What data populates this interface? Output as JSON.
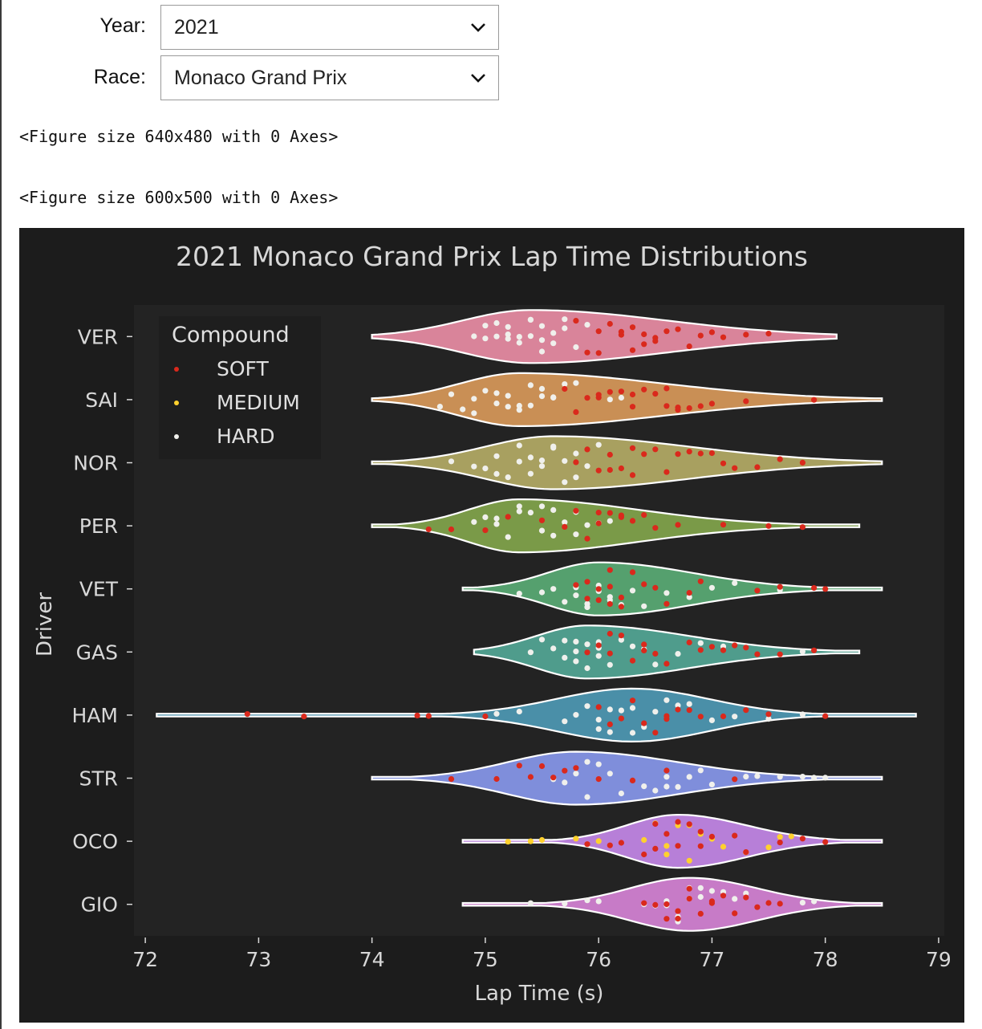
{
  "controls": {
    "year_label": "Year:",
    "year_value": "2021",
    "race_label": "Race:",
    "race_value": "Monaco Grand Prix"
  },
  "outputs": {
    "line1": "<Figure size 640x480 with 0 Axes>",
    "line2": "<Figure size 600x500 with 0 Axes>"
  },
  "chart_data": {
    "type": "violin+swarm",
    "title": "2021 Monaco Grand Prix Lap Time Distributions",
    "xlabel": "Lap Time (s)",
    "ylabel": "Driver",
    "xlim": [
      71.9,
      79.05
    ],
    "xticks": [
      72,
      73,
      74,
      75,
      76,
      77,
      78,
      79
    ],
    "grid": false,
    "legend": {
      "title": "Compound",
      "placement": "top-left",
      "entries": [
        {
          "label": "SOFT",
          "color": "#da291c"
        },
        {
          "label": "MEDIUM",
          "color": "#ffd12e"
        },
        {
          "label": "HARD",
          "color": "#f0f0ec"
        }
      ]
    },
    "drivers": [
      {
        "name": "VER",
        "color": "#d9849a",
        "min": 74.0,
        "max": 78.1,
        "mode": 75.4,
        "spread_lo": 0.8,
        "spread_hi": 1.6,
        "laps": {
          "HARD": [
            74.9,
            75.0,
            75.1,
            75.2,
            75.2,
            75.3,
            75.4,
            75.5,
            75.5,
            75.6,
            75.7,
            75.8,
            75.3,
            75.4,
            75.1,
            75.5,
            75.6,
            75.0,
            75.2,
            75.4,
            75.9,
            75.7
          ],
          "SOFT": [
            75.9,
            76.0,
            76.1,
            76.2,
            76.3,
            76.3,
            76.4,
            76.5,
            76.5,
            76.6,
            76.7,
            76.8,
            76.9,
            77.0,
            77.1,
            77.3,
            77.5,
            76.4,
            76.2,
            76.0,
            75.8
          ]
        }
      },
      {
        "name": "SAI",
        "color": "#c98f55",
        "min": 74.0,
        "max": 78.5,
        "mode": 75.3,
        "spread_lo": 0.7,
        "spread_hi": 1.7,
        "laps": {
          "HARD": [
            74.6,
            74.7,
            74.8,
            74.9,
            75.0,
            75.1,
            75.2,
            75.3,
            75.3,
            75.4,
            75.5,
            75.6,
            75.7,
            75.8,
            75.5,
            75.2,
            75.4,
            74.9,
            75.1,
            75.6,
            76.1,
            76.2
          ],
          "SOFT": [
            75.8,
            75.9,
            76.0,
            76.1,
            76.2,
            76.3,
            76.4,
            76.5,
            76.6,
            76.7,
            76.7,
            76.8,
            76.9,
            77.0,
            77.3,
            77.9,
            76.6,
            76.3,
            76.0,
            75.7
          ]
        }
      },
      {
        "name": "NOR",
        "color": "#a8a060",
        "min": 74.0,
        "max": 78.5,
        "mode": 75.6,
        "spread_lo": 0.8,
        "spread_hi": 1.6,
        "laps": {
          "HARD": [
            74.7,
            74.9,
            75.0,
            75.1,
            75.2,
            75.3,
            75.4,
            75.5,
            75.5,
            75.6,
            75.7,
            75.7,
            75.8,
            75.9,
            75.3,
            75.6,
            75.4,
            75.1,
            75.8,
            76.0
          ],
          "SOFT": [
            75.9,
            76.0,
            76.1,
            76.2,
            76.3,
            76.4,
            76.6,
            76.7,
            76.8,
            76.9,
            77.0,
            77.1,
            77.2,
            77.4,
            77.6,
            77.8,
            76.5,
            76.1,
            75.8,
            76.3
          ]
        }
      },
      {
        "name": "PER",
        "color": "#7a9a48",
        "min": 74.0,
        "max": 78.3,
        "mode": 75.3,
        "spread_lo": 0.6,
        "spread_hi": 1.4,
        "laps": {
          "HARD": [
            74.9,
            75.0,
            75.1,
            75.2,
            75.3,
            75.4,
            75.5,
            75.5,
            75.6,
            75.7,
            75.8,
            75.9,
            76.0,
            75.3,
            75.6,
            75.1,
            75.8,
            76.1
          ],
          "SOFT": [
            74.5,
            74.7,
            75.0,
            75.2,
            75.5,
            75.8,
            75.9,
            76.0,
            76.1,
            76.2,
            76.3,
            76.4,
            76.5,
            76.7,
            77.1,
            77.5,
            77.8,
            75.7,
            76.0,
            76.2
          ]
        }
      },
      {
        "name": "VET",
        "color": "#55a06e",
        "min": 74.8,
        "max": 78.5,
        "mode": 76.0,
        "spread_lo": 0.6,
        "spread_hi": 1.1,
        "laps": {
          "HARD": [
            75.3,
            75.5,
            75.6,
            75.7,
            75.8,
            75.8,
            75.9,
            75.9,
            76.0,
            76.0,
            76.1,
            76.1,
            76.2,
            76.3,
            76.4,
            76.6,
            76.8,
            77.0,
            77.2,
            75.9,
            76.0,
            77.6
          ],
          "SOFT": [
            75.8,
            75.9,
            76.0,
            76.0,
            76.1,
            76.1,
            76.2,
            76.3,
            76.4,
            76.5,
            76.6,
            76.8,
            76.9,
            77.4,
            77.6,
            77.9,
            78.0,
            75.9,
            76.1,
            76.2
          ]
        }
      },
      {
        "name": "GAS",
        "color": "#4f9c8c",
        "min": 74.9,
        "max": 78.3,
        "mode": 75.9,
        "spread_lo": 0.6,
        "spread_hi": 1.2,
        "laps": {
          "HARD": [
            75.4,
            75.5,
            75.6,
            75.7,
            75.7,
            75.8,
            75.8,
            75.9,
            75.9,
            76.0,
            76.0,
            76.1,
            76.2,
            76.3,
            76.4,
            76.5,
            76.7,
            76.9,
            77.1,
            75.8,
            76.0,
            77.8
          ],
          "SOFT": [
            75.9,
            76.0,
            76.1,
            76.2,
            76.3,
            76.4,
            76.5,
            76.6,
            76.8,
            76.9,
            77.0,
            77.1,
            77.2,
            77.3,
            77.4,
            77.6,
            77.9,
            76.1,
            76.4
          ]
        }
      },
      {
        "name": "HAM",
        "color": "#4a8fa8",
        "min": 72.1,
        "max": 78.8,
        "mode": 76.3,
        "spread_lo": 0.9,
        "spread_hi": 0.9,
        "laps": {
          "HARD": [
            75.1,
            75.3,
            75.7,
            75.8,
            75.9,
            76.0,
            76.0,
            76.1,
            76.2,
            76.3,
            76.4,
            76.5,
            76.6,
            76.7,
            76.8,
            77.0,
            77.2,
            77.5,
            77.8,
            76.1,
            76.3
          ],
          "SOFT": [
            72.9,
            73.4,
            74.4,
            74.5,
            75.0,
            76.0,
            76.2,
            76.3,
            76.4,
            76.5,
            76.6,
            76.7,
            76.8,
            76.9,
            77.1,
            77.3,
            77.5,
            78.0,
            76.1,
            76.6
          ]
        }
      },
      {
        "name": "STR",
        "color": "#7f8edb",
        "min": 74.0,
        "max": 78.5,
        "mode": 75.8,
        "spread_lo": 0.8,
        "spread_hi": 1.2,
        "laps": {
          "HARD": [
            75.6,
            75.7,
            75.8,
            75.9,
            76.0,
            76.1,
            76.2,
            76.4,
            76.5,
            76.6,
            76.7,
            76.8,
            76.9,
            77.0,
            77.3,
            77.4,
            77.6,
            77.8,
            77.9,
            78.0,
            75.9,
            76.6
          ],
          "SOFT": [
            74.7,
            75.1,
            75.3,
            75.4,
            75.5,
            75.6,
            75.7,
            75.8,
            76.0,
            76.3,
            76.6,
            77.2
          ]
        }
      },
      {
        "name": "OCO",
        "color": "#b77fd8",
        "min": 74.8,
        "max": 78.5,
        "mode": 76.7,
        "spread_lo": 0.6,
        "spread_hi": 0.8,
        "laps": {
          "MEDIUM": [
            75.2,
            75.4,
            75.5,
            75.8,
            76.0,
            76.4,
            76.5,
            76.6,
            76.7,
            76.8,
            76.9,
            77.0,
            77.1,
            77.3,
            77.5,
            77.6,
            77.7,
            76.6,
            76.8
          ],
          "SOFT": [
            75.9,
            76.1,
            76.2,
            76.4,
            76.5,
            76.6,
            76.7,
            76.8,
            76.9,
            77.0,
            77.2,
            77.3,
            77.6,
            77.8,
            78.0,
            76.5,
            76.7,
            76.9
          ]
        }
      },
      {
        "name": "GIO",
        "color": "#c77bc7",
        "min": 74.8,
        "max": 78.5,
        "mode": 76.8,
        "spread_lo": 0.7,
        "spread_hi": 0.8,
        "laps": {
          "HARD": [
            75.4,
            75.7,
            75.9,
            76.0,
            76.4,
            76.5,
            76.6,
            76.7,
            76.8,
            76.8,
            76.9,
            77.0,
            77.1,
            77.2,
            77.3,
            77.8,
            77.9,
            76.6,
            76.9,
            76.7
          ],
          "SOFT": [
            76.4,
            76.5,
            76.6,
            76.7,
            76.8,
            76.9,
            77.0,
            77.1,
            77.2,
            77.3,
            77.4,
            77.5,
            77.6,
            76.7,
            76.8,
            76.6,
            77.0
          ]
        }
      }
    ]
  }
}
